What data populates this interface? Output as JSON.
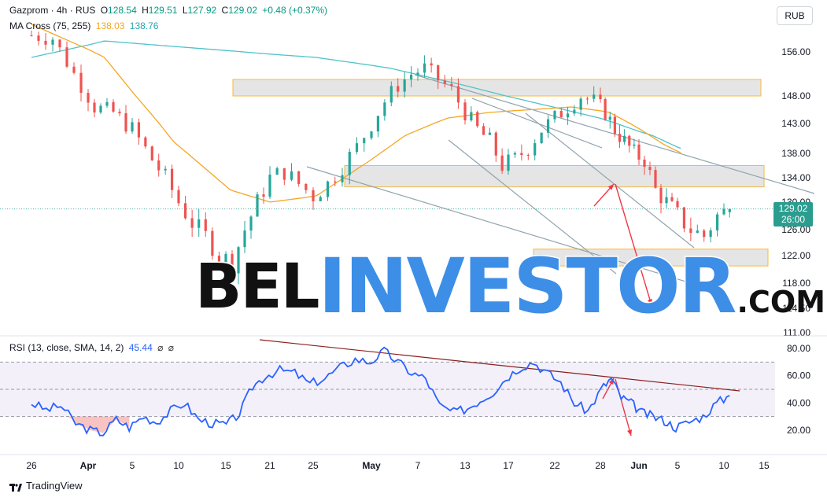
{
  "legend": {
    "symbol": "Gazprom · 4h · RUS",
    "o_label": "O",
    "o_value": "128.54",
    "h_label": "H",
    "h_value": "129.51",
    "l_label": "L",
    "l_value": "127.92",
    "c_label": "C",
    "c_value": "129.02",
    "change": "+0.48 (+0.37%)",
    "ma_label": "MA Cross (75, 255)",
    "ma_fast_value": "138.03",
    "ma_slow_value": "138.76",
    "rsi_label": "RSI (13, close, SMA, 14, 2)",
    "rsi_value": "45.44",
    "rsi_extra1": "⌀",
    "rsi_extra2": "⌀"
  },
  "currency_button": "RUB",
  "last_price": {
    "value": "129.02",
    "countdown": "26:00"
  },
  "watermark": {
    "part1": "BEL",
    "part2": "INVESTOR",
    "part3": ".COM"
  },
  "branding": {
    "name": "TradingView",
    "icon": "tradingview-logo-icon"
  },
  "colors": {
    "up": "#26a69a",
    "down": "#ef5350",
    "ma_fast": "#f5a623",
    "ma_slow": "#4fc3c9",
    "rsi_line": "#2962ff",
    "zone_border": "#f5b942",
    "arrow": "#f23645",
    "trend_rsi": "#8b1e1e",
    "channel": "#90a4ae"
  },
  "chart_data": [
    {
      "type": "candlestick",
      "title": "Gazprom · 4h · RUS",
      "price_axis_ticks": [
        "156.00",
        "148.00",
        "143.00",
        "138.00",
        "134.00",
        "130.00",
        "126.00",
        "122.00",
        "118.00",
        "114.50",
        "111.00"
      ],
      "price_axis_tick_values": [
        156,
        148,
        143,
        138,
        134,
        130,
        126,
        122,
        118,
        114.5,
        111
      ],
      "time_axis_ticks": [
        "26",
        "Apr",
        "5",
        "10",
        "15",
        "21",
        "25",
        "May",
        "7",
        "13",
        "17",
        "22",
        "28",
        "Jun",
        "5",
        "10",
        "15"
      ],
      "time_axis_tick_index": [
        0,
        8,
        15,
        22,
        29,
        36,
        42,
        50,
        57,
        64,
        71,
        78,
        85,
        93,
        100,
        107,
        114
      ],
      "close_path": [
        [
          0,
          159
        ],
        [
          3,
          158.5
        ],
        [
          6,
          152
        ],
        [
          9,
          146
        ],
        [
          12,
          145
        ],
        [
          15,
          142
        ],
        [
          18,
          137
        ],
        [
          20,
          134
        ],
        [
          22,
          130
        ],
        [
          24,
          127
        ],
        [
          26,
          125
        ],
        [
          28,
          122
        ],
        [
          30,
          121
        ],
        [
          32,
          126
        ],
        [
          34,
          130
        ],
        [
          36,
          134
        ],
        [
          38,
          135
        ],
        [
          40,
          133
        ],
        [
          42,
          131
        ],
        [
          44,
          133
        ],
        [
          46,
          136
        ],
        [
          48,
          139
        ],
        [
          50,
          143
        ],
        [
          52,
          147
        ],
        [
          54,
          150
        ],
        [
          56,
          152
        ],
        [
          58,
          153
        ],
        [
          60,
          151
        ],
        [
          62,
          149
        ],
        [
          64,
          145
        ],
        [
          66,
          142
        ],
        [
          68,
          140
        ],
        [
          70,
          136
        ],
        [
          72,
          137
        ],
        [
          74,
          139
        ],
        [
          76,
          142
        ],
        [
          78,
          144
        ],
        [
          80,
          146
        ],
        [
          82,
          148
        ],
        [
          84,
          147
        ],
        [
          86,
          145
        ],
        [
          88,
          142
        ],
        [
          90,
          140
        ],
        [
          92,
          138
        ],
        [
          94,
          137
        ],
        [
          96,
          132
        ],
        [
          98,
          130
        ],
        [
          100,
          128
        ],
        [
          102,
          126
        ],
        [
          104,
          125
        ],
        [
          106,
          128
        ],
        [
          108,
          129.02
        ]
      ],
      "ma_fast": [
        [
          0,
          161
        ],
        [
          10,
          155
        ],
        [
          20,
          140
        ],
        [
          28,
          132
        ],
        [
          34,
          130
        ],
        [
          40,
          131
        ],
        [
          46,
          136
        ],
        [
          52,
          141
        ],
        [
          58,
          144
        ],
        [
          64,
          145
        ],
        [
          70,
          145.5
        ],
        [
          76,
          146
        ],
        [
          82,
          145
        ],
        [
          88,
          142
        ],
        [
          92,
          139.5
        ],
        [
          95,
          138.03
        ]
      ],
      "ma_slow": [
        [
          0,
          155
        ],
        [
          10,
          158
        ],
        [
          20,
          157
        ],
        [
          30,
          156
        ],
        [
          40,
          155
        ],
        [
          50,
          153
        ],
        [
          60,
          150
        ],
        [
          70,
          147
        ],
        [
          80,
          144
        ],
        [
          90,
          141
        ],
        [
          95,
          138.76
        ]
      ],
      "supply_demand_zones": [
        [
          148,
          151
        ],
        [
          132.5,
          136
        ],
        [
          120.5,
          123
        ]
      ],
      "price_ylim": [
        110,
        162
      ]
    },
    {
      "type": "line",
      "title": "RSI (13, close, SMA, 14, 2)",
      "y_ticks": [
        "80.00",
        "60.00",
        "40.00",
        "20.00"
      ],
      "y_tick_values": [
        80,
        60,
        40,
        20
      ],
      "bands": [
        30,
        50,
        70
      ],
      "ylim": [
        5,
        88
      ],
      "values": [
        [
          0,
          40
        ],
        [
          2,
          35
        ],
        [
          4,
          38
        ],
        [
          6,
          25
        ],
        [
          8,
          20
        ],
        [
          10,
          18
        ],
        [
          12,
          28
        ],
        [
          14,
          22
        ],
        [
          16,
          30
        ],
        [
          18,
          26
        ],
        [
          20,
          34
        ],
        [
          22,
          40
        ],
        [
          24,
          28
        ],
        [
          26,
          25
        ],
        [
          28,
          24
        ],
        [
          30,
          32
        ],
        [
          32,
          52
        ],
        [
          34,
          60
        ],
        [
          36,
          64
        ],
        [
          38,
          62
        ],
        [
          40,
          54
        ],
        [
          42,
          58
        ],
        [
          44,
          66
        ],
        [
          46,
          72
        ],
        [
          48,
          70
        ],
        [
          50,
          78
        ],
        [
          52,
          70
        ],
        [
          54,
          62
        ],
        [
          56,
          58
        ],
        [
          58,
          38
        ],
        [
          60,
          33
        ],
        [
          62,
          36
        ],
        [
          64,
          42
        ],
        [
          66,
          48
        ],
        [
          68,
          58
        ],
        [
          70,
          66
        ],
        [
          72,
          70
        ],
        [
          74,
          62
        ],
        [
          76,
          55
        ],
        [
          78,
          40
        ],
        [
          80,
          34
        ],
        [
          82,
          50
        ],
        [
          84,
          58
        ],
        [
          86,
          44
        ],
        [
          88,
          40
        ],
        [
          90,
          33
        ],
        [
          92,
          30
        ],
        [
          94,
          27
        ],
        [
          96,
          22
        ],
        [
          98,
          26
        ],
        [
          100,
          30
        ],
        [
          102,
          40
        ],
        [
          104,
          45.44
        ]
      ]
    }
  ]
}
